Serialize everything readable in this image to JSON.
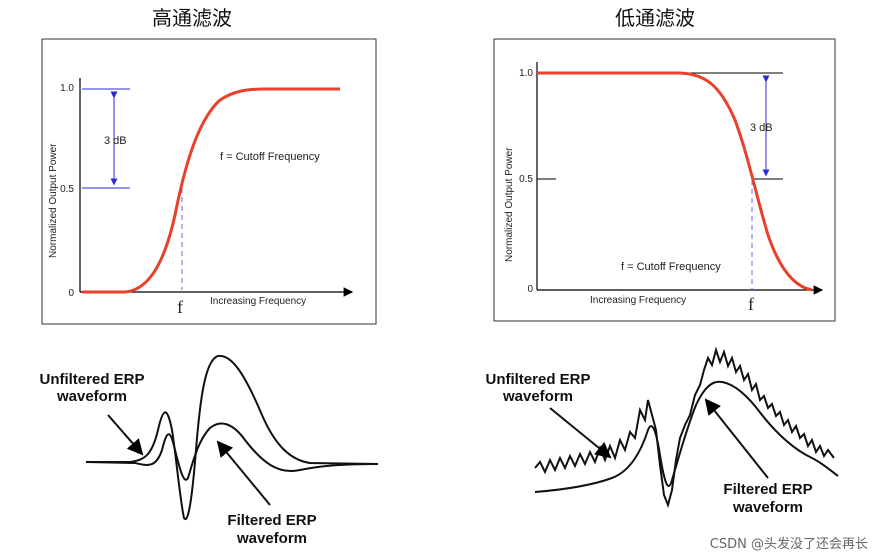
{
  "high_pass": {
    "title": "高通滤波",
    "ylabel": "Normalized Output Power",
    "xlabel": "Increasing Frequency",
    "y_ticks": [
      "1.0",
      "0.5",
      "0"
    ],
    "db_label": "3 dB",
    "cutoff_note": "f = Cutoff Frequency",
    "f_label": "f"
  },
  "low_pass": {
    "title": "低通滤波",
    "ylabel": "Normalized Output Power",
    "xlabel": "Increasing Frequency",
    "y_ticks": [
      "1.0",
      "0.5",
      "0"
    ],
    "db_label": "3 dB",
    "cutoff_note": "f = Cutoff Frequency",
    "f_label": "f"
  },
  "erp_left": {
    "unfiltered_line1": "Unfiltered ERP",
    "unfiltered_line2": "waveform",
    "filtered_line1": "Filtered ERP",
    "filtered_line2": "waveform"
  },
  "erp_right": {
    "unfiltered_line1": "Unfiltered ERP",
    "unfiltered_line2": "waveform",
    "filtered_line1": "Filtered ERP",
    "filtered_line2": "waveform"
  },
  "watermark": "CSDN @头发没了还会再长",
  "colors": {
    "curve": "#e8412b",
    "marker": "#2a2ad0",
    "axis": "#000000"
  }
}
